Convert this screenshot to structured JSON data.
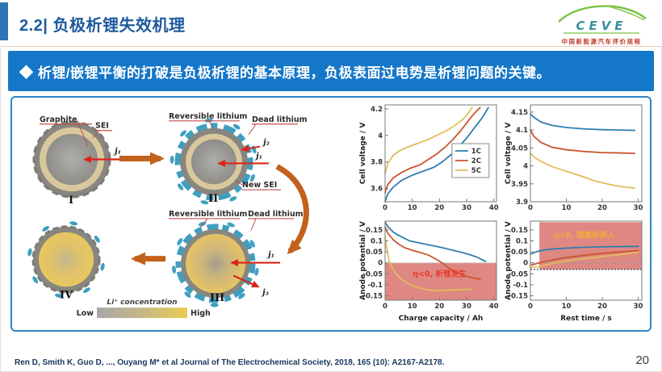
{
  "header": {
    "title": "2.2| 负极析锂失效机理",
    "logo": {
      "brand": "CEVE",
      "subtitle": "中国新能源汽车评价规程"
    }
  },
  "banner": {
    "text": "◆ 析锂/嵌锂平衡的打破是负极析锂的基本原理，负极表面过电势是析锂问题的关键。"
  },
  "diagram": {
    "labels": {
      "graphite": "Graphite",
      "sei": "SEI",
      "reversible_lithium": "Reversible lithium",
      "dead_lithium": "Dead lithium",
      "new_sei": "New SEI",
      "j1": "j₁",
      "j2": "j₂",
      "j3": "j₃",
      "stage_i": "I",
      "stage_ii": "II",
      "stage_iii": "III",
      "stage_iv": "IV",
      "li_concentration": "Li⁺ concentration",
      "low": "Low",
      "high": "High"
    }
  },
  "chart_data": [
    {
      "name": "cell-voltage-vs-capacity",
      "type": "line",
      "title": "",
      "ylabel": "Cell voltage / V",
      "xlabel": "",
      "xlim": [
        0,
        41
      ],
      "ylim": [
        3.5,
        4.23
      ],
      "xticks": [
        0,
        10,
        20,
        30,
        40
      ],
      "yticks": [
        3.6,
        3.8,
        4,
        4.2
      ],
      "legend": {
        "fx": 0.6,
        "fy": 0.4
      },
      "series": [
        {
          "name": "1C",
          "color": "#2e7eb0",
          "points": [
            [
              0,
              3.5
            ],
            [
              1,
              3.56
            ],
            [
              3,
              3.61
            ],
            [
              6,
              3.66
            ],
            [
              10,
              3.7
            ],
            [
              14,
              3.73
            ],
            [
              18,
              3.76
            ],
            [
              21,
              3.8
            ],
            [
              24,
              3.85
            ],
            [
              27,
              3.91
            ],
            [
              30,
              3.98
            ],
            [
              33,
              4.06
            ],
            [
              36,
              4.14
            ],
            [
              38,
              4.21
            ]
          ]
        },
        {
          "name": "2C",
          "color": "#c9552e",
          "points": [
            [
              0,
              3.57
            ],
            [
              1,
              3.63
            ],
            [
              3,
              3.68
            ],
            [
              6,
              3.72
            ],
            [
              9,
              3.75
            ],
            [
              13,
              3.78
            ],
            [
              16,
              3.82
            ],
            [
              19,
              3.86
            ],
            [
              22,
              3.91
            ],
            [
              25,
              3.97
            ],
            [
              28,
              4.04
            ],
            [
              31,
              4.12
            ],
            [
              33,
              4.17
            ],
            [
              35,
              4.21
            ]
          ]
        },
        {
          "name": "5C",
          "color": "#e3bc5c",
          "points": [
            [
              0,
              3.71
            ],
            [
              1,
              3.79
            ],
            [
              3,
              3.85
            ],
            [
              5,
              3.88
            ],
            [
              8,
              3.91
            ],
            [
              12,
              3.94
            ],
            [
              16,
              3.97
            ],
            [
              20,
              4.01
            ],
            [
              23,
              4.04
            ],
            [
              26,
              4.08
            ],
            [
              28,
              4.11
            ],
            [
              30,
              4.15
            ],
            [
              32,
              4.21
            ]
          ]
        }
      ]
    },
    {
      "name": "cell-voltage-vs-rest-time",
      "type": "line",
      "title": "",
      "ylabel": "Cell voltage / V",
      "xlabel": "",
      "xlim": [
        0,
        31
      ],
      "ylim": [
        3.9,
        4.17
      ],
      "xticks": [
        0,
        10,
        20,
        30
      ],
      "yticks": [
        3.9,
        3.95,
        4,
        4.05,
        4.1,
        4.15
      ],
      "series": [
        {
          "name": "1C",
          "color": "#2e7eb0",
          "points": [
            [
              0,
              4.145
            ],
            [
              1,
              4.135
            ],
            [
              3,
              4.122
            ],
            [
              6,
              4.113
            ],
            [
              10,
              4.107
            ],
            [
              15,
              4.103
            ],
            [
              20,
              4.101
            ],
            [
              25,
              4.1
            ],
            [
              29,
              4.099
            ]
          ]
        },
        {
          "name": "2C",
          "color": "#c9552e",
          "points": [
            [
              0,
              4.1
            ],
            [
              1,
              4.082
            ],
            [
              3,
              4.065
            ],
            [
              6,
              4.052
            ],
            [
              10,
              4.045
            ],
            [
              15,
              4.04
            ],
            [
              20,
              4.037
            ],
            [
              25,
              4.036
            ],
            [
              29,
              4.035
            ]
          ]
        },
        {
          "name": "5C",
          "color": "#e3bc5c",
          "points": [
            [
              0,
              4.035
            ],
            [
              1,
              4.025
            ],
            [
              3,
              4.012
            ],
            [
              6,
              3.998
            ],
            [
              10,
              3.985
            ],
            [
              14,
              3.972
            ],
            [
              18,
              3.958
            ],
            [
              22,
              3.948
            ],
            [
              26,
              3.941
            ],
            [
              29,
              3.938
            ]
          ]
        }
      ]
    },
    {
      "name": "anode-potential-vs-capacity",
      "type": "line",
      "title": "",
      "ylabel": "Anode potential / V",
      "xlabel": "Charge capacity / Ah",
      "xlim": [
        0,
        41
      ],
      "ylim": [
        -0.17,
        0.19
      ],
      "xticks": [
        0,
        10,
        20,
        30,
        40
      ],
      "yticks": [
        -0.15,
        -0.1,
        -0.05,
        0,
        0.05,
        0.1,
        0.15
      ],
      "regions": [
        {
          "x0": 0,
          "x1": 41,
          "y0": -0.17,
          "y1": 0,
          "color": "#dc7b75",
          "opacity": 0.9
        }
      ],
      "hlines": [
        {
          "y": 0,
          "style": "dashed",
          "color": "#c8c8c8"
        }
      ],
      "texts": [
        {
          "x": 20,
          "y": -0.062,
          "label": "η<0, 析锂发生",
          "color": "#e8392b"
        }
      ],
      "series": [
        {
          "name": "1C",
          "color": "#2e7eb0",
          "points": [
            [
              0,
              0.185
            ],
            [
              1,
              0.165
            ],
            [
              3,
              0.14
            ],
            [
              5,
              0.125
            ],
            [
              7,
              0.112
            ],
            [
              9,
              0.1
            ],
            [
              12,
              0.092
            ],
            [
              16,
              0.082
            ],
            [
              20,
              0.072
            ],
            [
              24,
              0.06
            ],
            [
              28,
              0.048
            ],
            [
              31,
              0.038
            ],
            [
              34,
              0.025
            ],
            [
              37,
              0.006
            ]
          ]
        },
        {
          "name": "2C",
          "color": "#c9552e",
          "points": [
            [
              0,
              0.163
            ],
            [
              1,
              0.135
            ],
            [
              3,
              0.105
            ],
            [
              5,
              0.085
            ],
            [
              7,
              0.07
            ],
            [
              10,
              0.057
            ],
            [
              13,
              0.047
            ],
            [
              16,
              0.035
            ],
            [
              19,
              0.015
            ],
            [
              21,
              0
            ],
            [
              23,
              -0.02
            ],
            [
              26,
              -0.042
            ],
            [
              29,
              -0.058
            ],
            [
              32,
              -0.068
            ],
            [
              35,
              -0.074
            ]
          ]
        },
        {
          "name": "5C",
          "color": "#e3bc5c",
          "points": [
            [
              0,
              0.12
            ],
            [
              0.7,
              0.06
            ],
            [
              1.5,
              0.01
            ],
            [
              2.2,
              -0.015
            ],
            [
              4,
              -0.05
            ],
            [
              6,
              -0.075
            ],
            [
              9,
              -0.098
            ],
            [
              12,
              -0.112
            ],
            [
              15,
              -0.122
            ],
            [
              18,
              -0.126
            ],
            [
              22,
              -0.125
            ],
            [
              26,
              -0.123
            ],
            [
              30,
              -0.121
            ],
            [
              32,
              -0.12
            ]
          ]
        }
      ]
    },
    {
      "name": "anode-potential-vs-rest-time",
      "type": "line",
      "title": "",
      "ylabel": "Anode potential / V",
      "xlabel": "Rest time / s",
      "xlim": [
        0,
        31
      ],
      "ylim": [
        -0.17,
        0.19
      ],
      "xticks": [
        0,
        10,
        20,
        30
      ],
      "yticks": [
        -0.15,
        -0.1,
        -0.05,
        0,
        0.05,
        0.1,
        0.15
      ],
      "regions": [
        {
          "x0": 2.5,
          "x1": 31,
          "y0": -0.03,
          "y1": 0.185,
          "color": "#dc7b75",
          "opacity": 0.9
        }
      ],
      "hlines": [
        {
          "y": 0,
          "style": "dashed",
          "color": "#999999"
        },
        {
          "y": -0.03,
          "style": "dotted",
          "color": "#444444"
        }
      ],
      "texts": [
        {
          "x": 15,
          "y": 0.115,
          "label": "η>0, 锂重新嵌入",
          "color": "#f2a93b"
        }
      ],
      "series": [
        {
          "name": "1C",
          "color": "#2e7eb0",
          "points": [
            [
              0,
              0.04
            ],
            [
              2,
              0.052
            ],
            [
              4,
              0.059
            ],
            [
              7,
              0.064
            ],
            [
              10,
              0.067
            ],
            [
              15,
              0.071
            ],
            [
              20,
              0.073
            ],
            [
              25,
              0.074
            ],
            [
              30,
              0.075
            ]
          ]
        },
        {
          "name": "2C",
          "color": "#c9552e",
          "points": [
            [
              0,
              -0.012
            ],
            [
              2,
              -0.002
            ],
            [
              4,
              0.006
            ],
            [
              7,
              0.016
            ],
            [
              10,
              0.024
            ],
            [
              14,
              0.032
            ],
            [
              18,
              0.04
            ],
            [
              22,
              0.046
            ],
            [
              26,
              0.051
            ],
            [
              30,
              0.056
            ]
          ]
        },
        {
          "name": "5C",
          "color": "#e3bc5c",
          "points": [
            [
              0,
              -0.022
            ],
            [
              2,
              -0.018
            ],
            [
              4,
              -0.01
            ],
            [
              7,
              0
            ],
            [
              10,
              0.008
            ],
            [
              14,
              0.017
            ],
            [
              18,
              0.025
            ],
            [
              22,
              0.032
            ],
            [
              26,
              0.04
            ],
            [
              30,
              0.048
            ]
          ]
        }
      ]
    }
  ],
  "footer": {
    "citation": "Ren D, Smith K, Guo D, ..., Ouyang M* et al Journal of The Electrochemical Society, 2018, 165 (10): A2167-A2178.",
    "page_number": "20"
  }
}
